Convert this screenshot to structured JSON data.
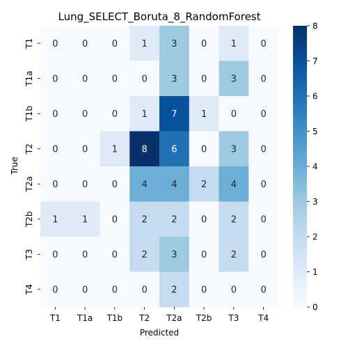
{
  "chart_data": {
    "type": "heatmap",
    "title": "Lung_SELECT_Boruta_8_RandomForest",
    "xlabel": "Predicted",
    "ylabel": "True",
    "x_categories": [
      "T1",
      "T1a",
      "T1b",
      "T2",
      "T2a",
      "T2b",
      "T3",
      "T4"
    ],
    "y_categories": [
      "T1",
      "T1a",
      "T1b",
      "T2",
      "T2a",
      "T2b",
      "T3",
      "T4"
    ],
    "values": [
      [
        0,
        0,
        0,
        1,
        3,
        0,
        1,
        0
      ],
      [
        0,
        0,
        0,
        0,
        3,
        0,
        3,
        0
      ],
      [
        0,
        0,
        0,
        1,
        7,
        1,
        0,
        0
      ],
      [
        0,
        0,
        1,
        8,
        6,
        0,
        3,
        0
      ],
      [
        0,
        0,
        0,
        4,
        4,
        2,
        4,
        0
      ],
      [
        1,
        1,
        0,
        2,
        2,
        0,
        2,
        0
      ],
      [
        0,
        0,
        0,
        2,
        3,
        0,
        2,
        0
      ],
      [
        0,
        0,
        0,
        0,
        2,
        0,
        0,
        0
      ]
    ],
    "colorbar": {
      "min": 0,
      "max": 8,
      "ticks": [
        0,
        1,
        2,
        3,
        4,
        5,
        6,
        7,
        8
      ]
    },
    "colormap": "Blues",
    "colors": {
      "low": "#f7fbff",
      "high": "#08306b"
    },
    "annotations": true,
    "grid": false
  }
}
